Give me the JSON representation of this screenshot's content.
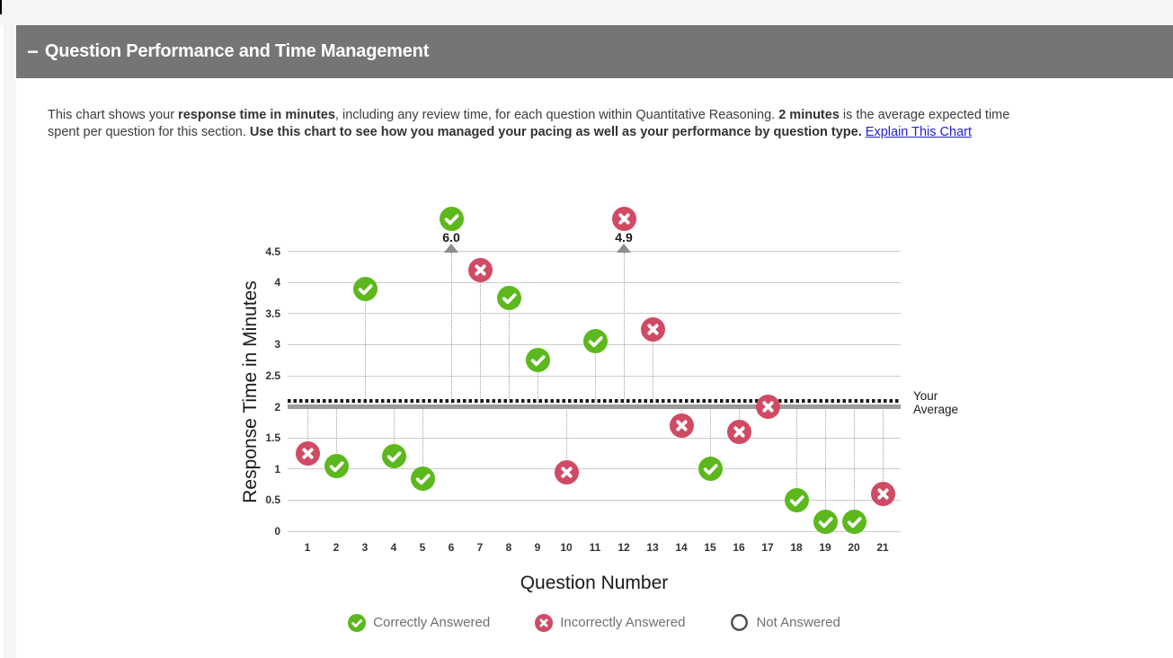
{
  "page": {
    "section_header": {
      "collapse_symbol": "−",
      "title": "Question Performance and Time Management"
    },
    "description": {
      "segments": [
        {
          "text": "This chart shows your "
        },
        {
          "text": "response time in minutes",
          "bold": true
        },
        {
          "text": ", including any review time, for each question within Quantitative Reasoning. "
        },
        {
          "text": "2 minutes",
          "bold": true
        },
        {
          "text": " is the average expected time"
        },
        {
          "text": "spent per question for this section. "
        },
        {
          "text": "Use this chart to see how you managed your pacing as well as your performance by question type.",
          "bold": true
        },
        {
          "text": " "
        },
        {
          "text": "Explain This Chart",
          "link": true
        }
      ]
    }
  },
  "chart_data": {
    "type": "scatter",
    "title": "",
    "xlabel": "Question Number",
    "ylabel": "Response Time in Minutes",
    "ylim": [
      0,
      4.5
    ],
    "yticks": [
      0,
      0.5,
      1,
      1.5,
      2,
      2.5,
      3,
      3.5,
      4,
      4.5
    ],
    "x_categories": [
      1,
      2,
      3,
      4,
      5,
      6,
      7,
      8,
      9,
      10,
      11,
      12,
      13,
      14,
      15,
      16,
      17,
      18,
      19,
      20,
      21
    ],
    "expected_time_line": {
      "minutes": 2,
      "style": "thick-gray"
    },
    "your_average_line": {
      "minutes": 2.1,
      "label": "Your Average",
      "style": "dotted-black"
    },
    "overflow_note": "points above 4.5 are drawn above the axis with their value labeled",
    "points": [
      {
        "q": 1,
        "minutes": 1.25,
        "status": "incorrect"
      },
      {
        "q": 2,
        "minutes": 1.05,
        "status": "correct"
      },
      {
        "q": 3,
        "minutes": 3.9,
        "status": "correct"
      },
      {
        "q": 4,
        "minutes": 1.2,
        "status": "correct"
      },
      {
        "q": 5,
        "minutes": 0.85,
        "status": "correct"
      },
      {
        "q": 6,
        "minutes": 6.0,
        "status": "correct"
      },
      {
        "q": 7,
        "minutes": 4.2,
        "status": "incorrect"
      },
      {
        "q": 8,
        "minutes": 3.75,
        "status": "correct"
      },
      {
        "q": 9,
        "minutes": 2.75,
        "status": "correct"
      },
      {
        "q": 10,
        "minutes": 0.95,
        "status": "incorrect"
      },
      {
        "q": 11,
        "minutes": 3.05,
        "status": "correct"
      },
      {
        "q": 12,
        "minutes": 4.9,
        "status": "incorrect"
      },
      {
        "q": 13,
        "minutes": 3.25,
        "status": "incorrect"
      },
      {
        "q": 14,
        "minutes": 1.7,
        "status": "incorrect"
      },
      {
        "q": 15,
        "minutes": 1.0,
        "status": "correct"
      },
      {
        "q": 16,
        "minutes": 1.6,
        "status": "incorrect"
      },
      {
        "q": 17,
        "minutes": 2.0,
        "status": "incorrect"
      },
      {
        "q": 18,
        "minutes": 0.5,
        "status": "correct"
      },
      {
        "q": 19,
        "minutes": 0.15,
        "status": "correct"
      },
      {
        "q": 20,
        "minutes": 0.15,
        "status": "correct"
      },
      {
        "q": 21,
        "minutes": 0.6,
        "status": "incorrect"
      }
    ],
    "legend": [
      {
        "status": "correct",
        "label": "Correctly Answered"
      },
      {
        "status": "incorrect",
        "label": "Incorrectly Answered"
      },
      {
        "status": "not_answered",
        "label": "Not Answered"
      }
    ],
    "colors": {
      "correct": "#5cb81c",
      "incorrect": "#d04a63",
      "not_answered": "#4a4c52",
      "grid": "#cccccc",
      "expected_line": "#9b9b9b",
      "average_line": "#151515",
      "header_bar": "#757575",
      "link": "#2222cc"
    }
  }
}
